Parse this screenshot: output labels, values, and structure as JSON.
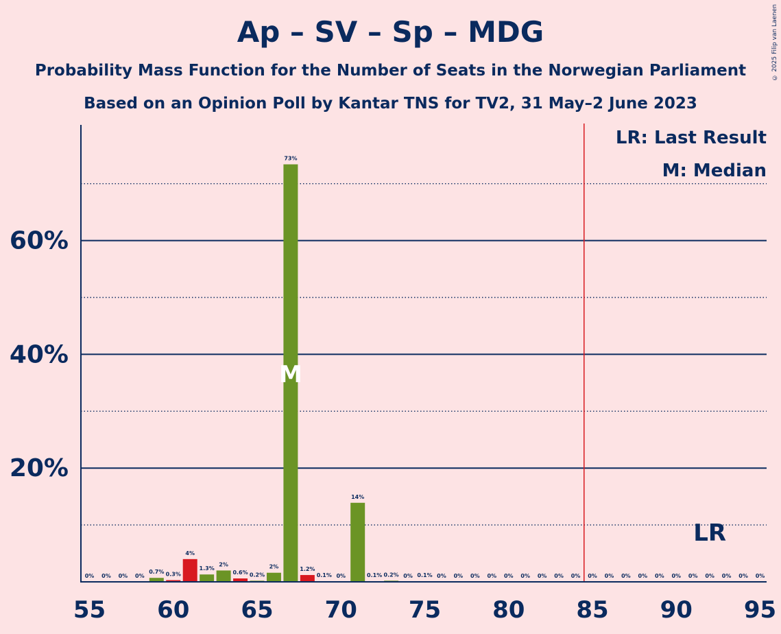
{
  "title": "Ap – SV – Sp – MDG",
  "subtitle1": "Probability Mass Function for the Number of Seats in the Norwegian Parliament",
  "subtitle2": "Based on an Opinion Poll by Kantar TNS for TV2, 31 May–2 June 2023",
  "copyright": "© 2025 Filip van Laenen",
  "legend": {
    "last_result": "LR: Last Result",
    "median": "M: Median"
  },
  "colors": {
    "background": "#FDE3E4",
    "text": "#0A2A5E",
    "green": "#6B9425",
    "red": "#D81920",
    "majority_line": "#D81920"
  },
  "chart_data": {
    "type": "bar",
    "xlim": [
      55,
      95
    ],
    "ylim": [
      0,
      80
    ],
    "x_ticks": [
      55,
      60,
      65,
      70,
      75,
      80,
      85,
      90,
      95
    ],
    "y_ticks": [
      {
        "value": 20,
        "label": "20%"
      },
      {
        "value": 40,
        "label": "40%"
      },
      {
        "value": 60,
        "label": "60%"
      }
    ],
    "dotted_gridlines": [
      10,
      30,
      50,
      70
    ],
    "majority_line": 84.5,
    "median_seat": 67,
    "median_marker": "M",
    "last_result_seat": 92,
    "last_result_marker": "LR",
    "bars": [
      {
        "seat": 55,
        "value": 0,
        "label": "0%",
        "color": "green"
      },
      {
        "seat": 56,
        "value": 0,
        "label": "0%",
        "color": "green"
      },
      {
        "seat": 57,
        "value": 0,
        "label": "0%",
        "color": "green"
      },
      {
        "seat": 58,
        "value": 0,
        "label": "0%",
        "color": "green"
      },
      {
        "seat": 59,
        "value": 0.7,
        "label": "0.7%",
        "color": "green"
      },
      {
        "seat": 60,
        "value": 0.3,
        "label": "0.3%",
        "color": "red"
      },
      {
        "seat": 61,
        "value": 4,
        "label": "4%",
        "color": "red"
      },
      {
        "seat": 62,
        "value": 1.3,
        "label": "1.3%",
        "color": "green"
      },
      {
        "seat": 63,
        "value": 2,
        "label": "2%",
        "color": "green"
      },
      {
        "seat": 64,
        "value": 0.6,
        "label": "0.6%",
        "color": "red"
      },
      {
        "seat": 65,
        "value": 0.2,
        "label": "0.2%",
        "color": "green"
      },
      {
        "seat": 66,
        "value": 1.6,
        "label": "2%",
        "color": "green"
      },
      {
        "seat": 67,
        "value": 73.4,
        "label": "73%",
        "color": "green"
      },
      {
        "seat": 68,
        "value": 1.2,
        "label": "1.2%",
        "color": "red"
      },
      {
        "seat": 69,
        "value": 0.1,
        "label": "0.1%",
        "color": "green"
      },
      {
        "seat": 70,
        "value": 0,
        "label": "0%",
        "color": "green"
      },
      {
        "seat": 71,
        "value": 13.9,
        "label": "14%",
        "color": "green"
      },
      {
        "seat": 72,
        "value": 0.1,
        "label": "0.1%",
        "color": "green"
      },
      {
        "seat": 73,
        "value": 0.2,
        "label": "0.2%",
        "color": "green"
      },
      {
        "seat": 74,
        "value": 0,
        "label": "0%",
        "color": "green"
      },
      {
        "seat": 75,
        "value": 0.1,
        "label": "0.1%",
        "color": "green"
      },
      {
        "seat": 76,
        "value": 0,
        "label": "0%",
        "color": "green"
      },
      {
        "seat": 77,
        "value": 0,
        "label": "0%",
        "color": "green"
      },
      {
        "seat": 78,
        "value": 0,
        "label": "0%",
        "color": "green"
      },
      {
        "seat": 79,
        "value": 0,
        "label": "0%",
        "color": "green"
      },
      {
        "seat": 80,
        "value": 0,
        "label": "0%",
        "color": "green"
      },
      {
        "seat": 81,
        "value": 0,
        "label": "0%",
        "color": "green"
      },
      {
        "seat": 82,
        "value": 0,
        "label": "0%",
        "color": "green"
      },
      {
        "seat": 83,
        "value": 0,
        "label": "0%",
        "color": "green"
      },
      {
        "seat": 84,
        "value": 0,
        "label": "0%",
        "color": "green"
      },
      {
        "seat": 85,
        "value": 0,
        "label": "0%",
        "color": "green"
      },
      {
        "seat": 86,
        "value": 0,
        "label": "0%",
        "color": "green"
      },
      {
        "seat": 87,
        "value": 0,
        "label": "0%",
        "color": "green"
      },
      {
        "seat": 88,
        "value": 0,
        "label": "0%",
        "color": "green"
      },
      {
        "seat": 89,
        "value": 0,
        "label": "0%",
        "color": "green"
      },
      {
        "seat": 90,
        "value": 0,
        "label": "0%",
        "color": "green"
      },
      {
        "seat": 91,
        "value": 0,
        "label": "0%",
        "color": "green"
      },
      {
        "seat": 92,
        "value": 0,
        "label": "0%",
        "color": "green"
      },
      {
        "seat": 93,
        "value": 0,
        "label": "0%",
        "color": "green"
      },
      {
        "seat": 94,
        "value": 0,
        "label": "0%",
        "color": "green"
      },
      {
        "seat": 95,
        "value": 0,
        "label": "0%",
        "color": "green"
      }
    ]
  }
}
